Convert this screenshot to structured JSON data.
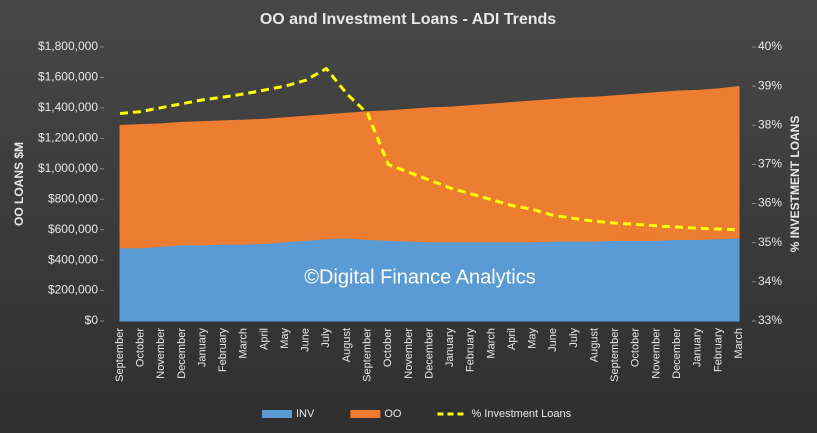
{
  "chart_data": {
    "type": "stacked-area-line",
    "title": "OO and Investment Loans - ADI Trends",
    "y_label": "OO LOANS $M",
    "y2_label": "% INVESTMENT LOANS",
    "annotation": "©Digital Finance Analytics",
    "categories": [
      "September",
      "October",
      "November",
      "December",
      "January",
      "February",
      "March",
      "April",
      "May",
      "June",
      "July",
      "August",
      "September",
      "October",
      "November",
      "December",
      "January",
      "February",
      "March",
      "April",
      "May",
      "June",
      "July",
      "August",
      "September",
      "October",
      "November",
      "December",
      "January",
      "February",
      "March"
    ],
    "series": [
      {
        "name": "INV",
        "color": "#5b9bd5",
        "values": [
          480000,
          480000,
          490000,
          500000,
          500000,
          505000,
          505000,
          510000,
          520000,
          530000,
          540000,
          545000,
          535000,
          530000,
          525000,
          520000,
          520000,
          520000,
          520000,
          520000,
          520000,
          525000,
          525000,
          525000,
          530000,
          530000,
          530000,
          535000,
          535000,
          540000,
          545000
        ]
      },
      {
        "name": "OO",
        "color": "#ed7d31",
        "values": [
          805000,
          810000,
          805000,
          805000,
          810000,
          810000,
          815000,
          815000,
          815000,
          815000,
          815000,
          820000,
          840000,
          850000,
          865000,
          880000,
          885000,
          895000,
          905000,
          915000,
          925000,
          930000,
          940000,
          945000,
          950000,
          960000,
          970000,
          975000,
          980000,
          985000,
          995000
        ]
      },
      {
        "name": "% Investment Loans",
        "color": "#ffff00",
        "axis": "y2",
        "values": [
          38.3,
          38.35,
          38.45,
          38.55,
          38.65,
          38.72,
          38.8,
          38.9,
          39.0,
          39.15,
          39.45,
          38.8,
          38.3,
          37.0,
          36.8,
          36.6,
          36.4,
          36.25,
          36.1,
          35.95,
          35.85,
          35.7,
          35.62,
          35.55,
          35.5,
          35.47,
          35.43,
          35.4,
          35.37,
          35.35,
          35.33
        ]
      }
    ],
    "ylim": [
      0,
      1800000
    ],
    "yticks": [
      {
        "value": 0,
        "label": "$0"
      },
      {
        "value": 200000,
        "label": "$200,000"
      },
      {
        "value": 400000,
        "label": "$400,000"
      },
      {
        "value": 600000,
        "label": "$600,000"
      },
      {
        "value": 800000,
        "label": "$800,000"
      },
      {
        "value": 1000000,
        "label": "$1,000,000"
      },
      {
        "value": 1200000,
        "label": "$1,200,000"
      },
      {
        "value": 1400000,
        "label": "$1,400,000"
      },
      {
        "value": 1600000,
        "label": "$1,600,000"
      },
      {
        "value": 1800000,
        "label": "$1,800,000"
      }
    ],
    "y2lim": [
      33,
      40
    ],
    "y2ticks": [
      {
        "value": 33,
        "label": "33%"
      },
      {
        "value": 34,
        "label": "34%"
      },
      {
        "value": 35,
        "label": "35%"
      },
      {
        "value": 36,
        "label": "36%"
      },
      {
        "value": 37,
        "label": "37%"
      },
      {
        "value": 38,
        "label": "38%"
      },
      {
        "value": 39,
        "label": "39%"
      },
      {
        "value": 40,
        "label": "40%"
      }
    ],
    "legend": "bottom"
  }
}
